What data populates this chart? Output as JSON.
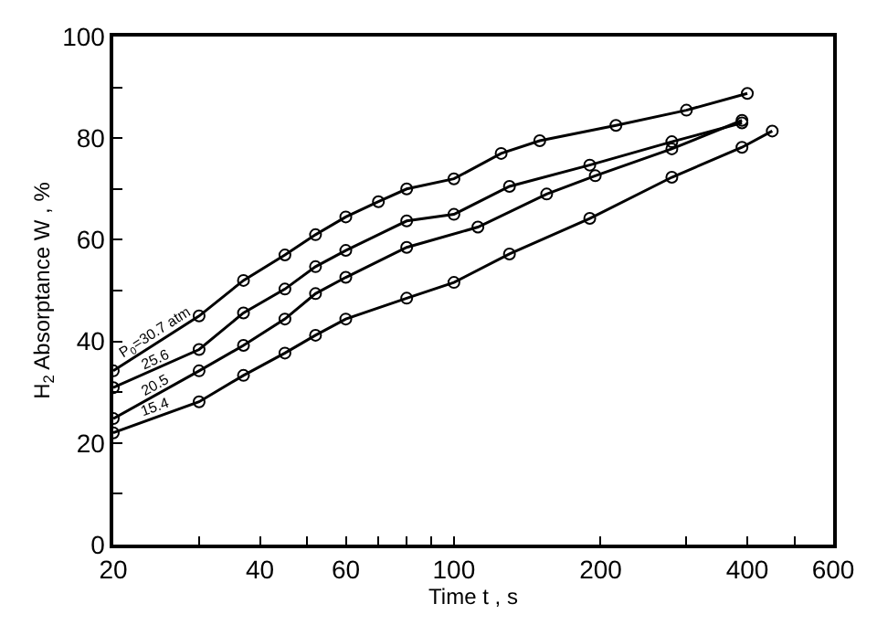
{
  "chart_data": {
    "type": "line",
    "xlabel": "Time t , s",
    "ylabel": "H$_{2}$ Absorptance W , %",
    "log": "x",
    "xlim": [
      20,
      600
    ],
    "ylim": [
      0,
      100
    ],
    "xticks": [
      20,
      {
        "value": 30,
        "label": null
      },
      40,
      {
        "value": 50,
        "label": null
      },
      60,
      {
        "value": 70,
        "label": null
      },
      {
        "value": 80,
        "label": null
      },
      {
        "value": 90,
        "label": null
      },
      100,
      200,
      {
        "value": 300,
        "label": null
      },
      400,
      {
        "value": 500,
        "label": null
      },
      600
    ],
    "yticks": [
      0,
      {
        "value": 10,
        "label": null
      },
      20,
      {
        "value": 30,
        "label": null
      },
      40,
      {
        "value": 50,
        "label": null
      },
      60,
      {
        "value": 70,
        "label": null
      },
      80,
      {
        "value": 90,
        "label": null
      },
      100
    ],
    "legend": false,
    "marker": "circle",
    "line_style": "solid",
    "series": [
      {
        "name": "P$_{0}$=30.7 atm",
        "color": "#000000",
        "x": [
          20,
          30,
          37,
          45,
          52,
          60,
          70,
          80,
          100,
          125,
          150,
          215,
          300,
          400
        ],
        "values": [
          34.2,
          45,
          52,
          57,
          61,
          64.5,
          67.5,
          70,
          72,
          77,
          79.5,
          82.5,
          85.5,
          88.8
        ]
      },
      {
        "name": "25.6",
        "color": "#000000",
        "x": [
          20,
          30,
          37,
          45,
          52,
          60,
          80,
          100,
          130,
          190,
          280,
          390
        ],
        "values": [
          30.9,
          38.4,
          45.6,
          50.3,
          54.7,
          57.9,
          63.7,
          65,
          70.5,
          74.7,
          79.3,
          83
        ]
      },
      {
        "name": "20.5",
        "color": "#000000",
        "x": [
          20,
          30,
          37,
          45,
          52,
          60,
          80,
          112,
          155,
          195,
          280,
          390
        ],
        "values": [
          24.8,
          34.2,
          39.2,
          44.4,
          49.4,
          52.6,
          58.5,
          62.5,
          69,
          72.6,
          77.9,
          83.5
        ]
      },
      {
        "name": "15.4",
        "color": "#000000",
        "x": [
          20,
          30,
          37,
          45,
          52,
          60,
          80,
          100,
          130,
          190,
          280,
          390,
          450
        ],
        "values": [
          22,
          28.1,
          33.3,
          37.7,
          41.2,
          44.4,
          48.5,
          51.6,
          57.2,
          64.2,
          72.3,
          78.2,
          81.4
        ]
      }
    ]
  }
}
